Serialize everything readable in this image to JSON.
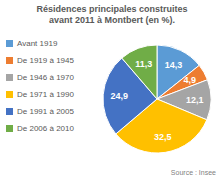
{
  "chart_data": {
    "type": "pie",
    "title": "Résidences principales construites avant 2011 à Montbert (en %).",
    "categories": [
      "Avant 1919",
      "De 1919 à 1945",
      "De 1946 à 1970",
      "De 1971 à 1990",
      "De 1991 à 2005",
      "De 2006 à 2010"
    ],
    "values": [
      14.3,
      4.9,
      12.1,
      32.5,
      24.9,
      11.3
    ],
    "value_labels": [
      "14,3",
      "4,9",
      "12,1",
      "32,5",
      "24,9",
      "11,3"
    ],
    "colors": [
      "#5b9bd5",
      "#ed7d31",
      "#a5a5a5",
      "#ffc000",
      "#4472c4",
      "#70ad47"
    ],
    "data_labels": true,
    "legend": "left",
    "source": "Source : Insee"
  }
}
